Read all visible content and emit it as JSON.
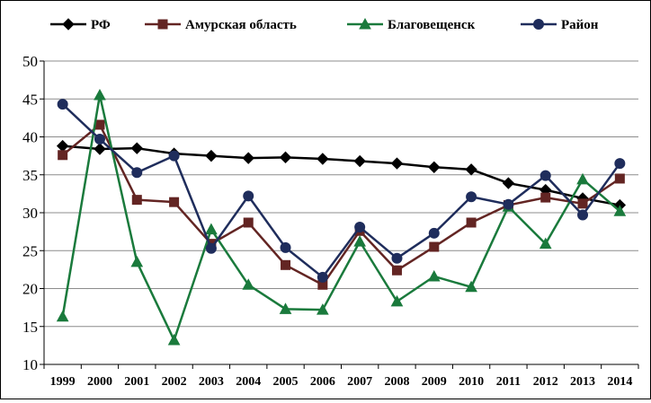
{
  "chart_data": {
    "type": "line",
    "title": "",
    "xlabel": "",
    "ylabel": "",
    "ylim": [
      10,
      50
    ],
    "yticks": [
      10,
      15,
      20,
      25,
      30,
      35,
      40,
      45,
      50
    ],
    "grid": "horizontal",
    "legend_position": "top",
    "categories": [
      "1999",
      "2000",
      "2001",
      "2002",
      "2003",
      "2004",
      "2005",
      "2006",
      "2007",
      "2008",
      "2009",
      "2010",
      "2011",
      "2012",
      "2013",
      "2014"
    ],
    "series": [
      {
        "name": "РФ",
        "color": "#000000",
        "marker": "diamond",
        "values": [
          38.8,
          38.4,
          38.5,
          37.8,
          37.5,
          37.2,
          37.3,
          37.1,
          36.8,
          36.5,
          36.0,
          35.7,
          33.9,
          33.0,
          31.9,
          31.0
        ]
      },
      {
        "name": "Амурская область",
        "color": "#632523",
        "marker": "square",
        "values": [
          37.6,
          41.6,
          31.7,
          31.4,
          25.9,
          28.7,
          23.1,
          20.5,
          27.6,
          22.4,
          25.5,
          28.7,
          31.0,
          32.0,
          31.2,
          34.5
        ]
      },
      {
        "name": "Благовещенск",
        "color": "#1a7a3c",
        "marker": "triangle",
        "values": [
          16.3,
          45.5,
          23.5,
          13.2,
          27.8,
          20.5,
          17.3,
          17.2,
          26.2,
          18.3,
          21.6,
          20.2,
          30.8,
          25.9,
          34.4,
          30.2
        ]
      },
      {
        "name": "Район",
        "color": "#1f2d5c",
        "marker": "circle",
        "values": [
          44.3,
          39.7,
          35.3,
          37.5,
          25.3,
          32.2,
          25.4,
          21.5,
          28.1,
          24.0,
          27.3,
          32.1,
          31.1,
          34.9,
          29.7,
          36.5
        ]
      }
    ]
  }
}
